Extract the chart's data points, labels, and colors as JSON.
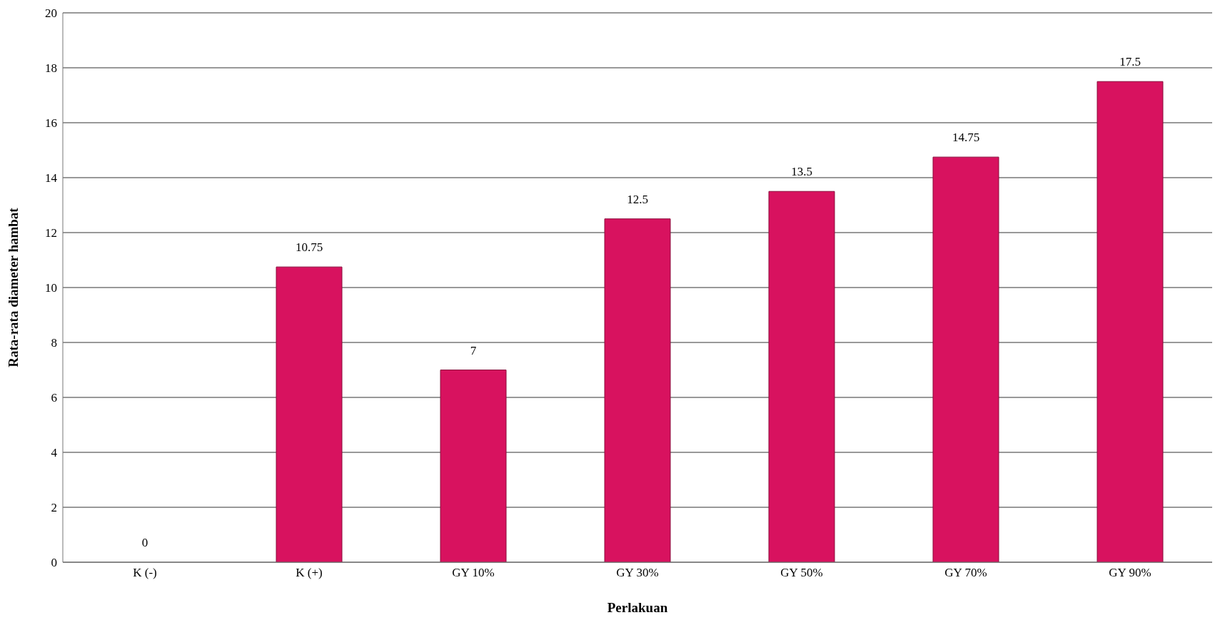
{
  "chart_data": {
    "type": "bar",
    "xlabel": "Perlakuan",
    "ylabel": "Rata-rata diameter hambat",
    "categories": [
      "K (-)",
      "K (+)",
      "GY 10%",
      "GY 30%",
      "GY 50%",
      "GY 70%",
      "GY 90%"
    ],
    "values": [
      0,
      10.75,
      7,
      12.5,
      13.5,
      14.75,
      17.5
    ],
    "color": "#d8125f",
    "ylim": [
      0,
      20
    ],
    "yticks": [
      0,
      2,
      4,
      6,
      8,
      10,
      12,
      14,
      16,
      18,
      20
    ],
    "grid": "y",
    "data_labels": true
  }
}
